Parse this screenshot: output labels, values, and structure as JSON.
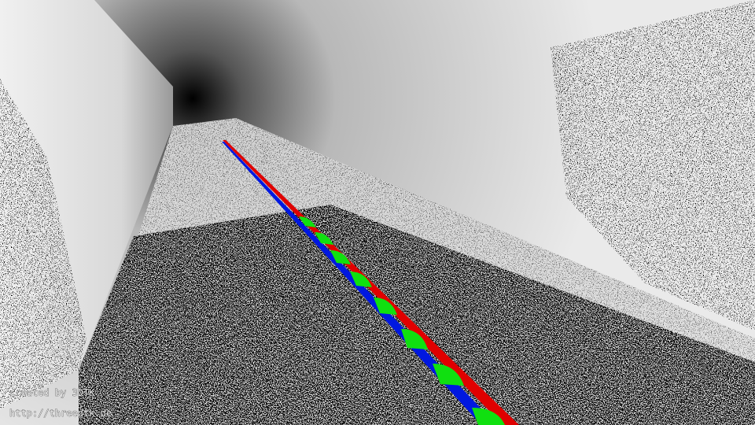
{
  "watermark": {
    "line1": "created by 3DTK",
    "line2": "http://threedtk.de"
  }
}
